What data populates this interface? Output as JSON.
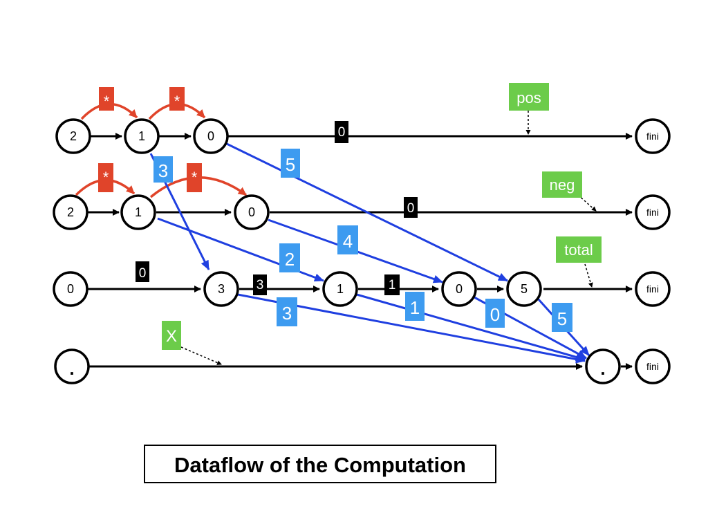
{
  "title": "Dataflow of the Computation",
  "colors": {
    "red": "#e0442a",
    "blue_edge": "#1f3fe0",
    "blue_label": "#3d9bf0",
    "green_label": "#6ccc4a",
    "black_label": "#000000"
  },
  "nodes": {
    "r1_a": "2",
    "r1_b": "1",
    "r1_c": "0",
    "r1_fini": "fini",
    "r2_a": "2",
    "r2_b": "1",
    "r2_c": "0",
    "r2_fini": "fini",
    "r3_a": "0",
    "r3_b": "3",
    "r3_c": "1",
    "r3_d": "0",
    "r3_e": "5",
    "r3_fini": "fini",
    "r4_a": ".",
    "r4_b": ".",
    "r4_fini": "fini"
  },
  "edge_labels": {
    "r1_star_1": "*",
    "r1_star_2": "*",
    "r2_star_1": "*",
    "r2_star_2": "*",
    "r1_zero": "0",
    "r2_zero": "0",
    "r3_zero": "0",
    "r3_three": "3",
    "r3_one": "1",
    "blue_3_top": "3",
    "blue_5_top": "5",
    "blue_2": "2",
    "blue_4": "4",
    "blue_3_bottom": "3",
    "blue_1": "1",
    "blue_0": "0",
    "blue_5_bottom": "5"
  },
  "variable_labels": {
    "pos": "pos",
    "neg": "neg",
    "total": "total",
    "x": "X"
  }
}
